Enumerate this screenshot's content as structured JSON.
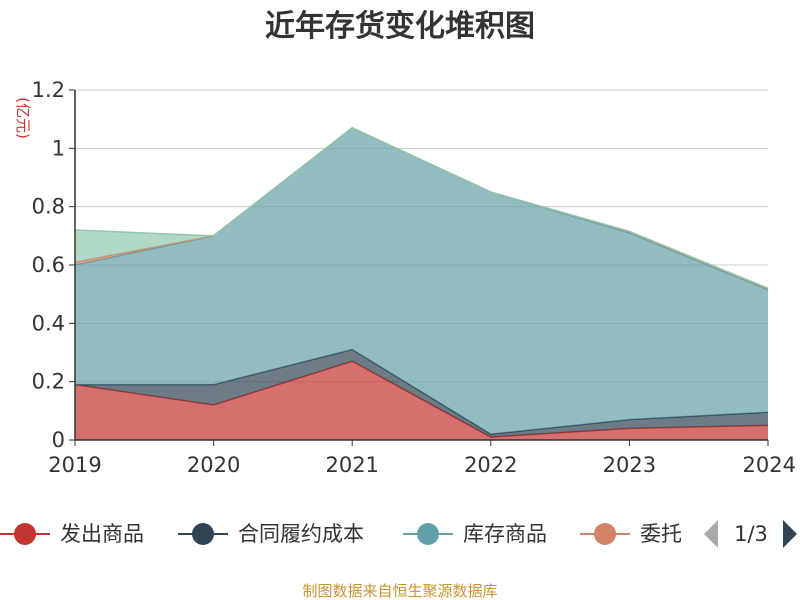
{
  "title": "近年存货变化堆积图",
  "footer": "制图数据来自恒生聚源数据库",
  "legend": {
    "items": [
      {
        "label": "发出商品",
        "color": "#c23531"
      },
      {
        "label": "合同履约成本",
        "color": "#2f4554"
      },
      {
        "label": "库存商品",
        "color": "#61a0a8"
      },
      {
        "label": "委托",
        "color": "#d48265"
      }
    ],
    "page": "1/3"
  },
  "chart_data": {
    "type": "area",
    "stacked": true,
    "unit": "(亿元)",
    "categories": [
      "2019",
      "2020",
      "2021",
      "2022",
      "2023",
      "2024"
    ],
    "yticks": [
      "0",
      "0.2",
      "0.4",
      "0.6",
      "0.8",
      "1",
      "1.2"
    ],
    "ylim": [
      0,
      1.2
    ],
    "grid": true,
    "legend_position": "bottom",
    "series": [
      {
        "name": "发出商品",
        "color": "#c23531",
        "values": [
          0.19,
          0.12,
          0.27,
          0.01,
          0.04,
          0.05
        ]
      },
      {
        "name": "合同履约成本",
        "color": "#2f4554",
        "values": [
          0.0,
          0.07,
          0.04,
          0.01,
          0.03,
          0.045
        ]
      },
      {
        "name": "库存商品",
        "color": "#61a0a8",
        "values": [
          0.41,
          0.51,
          0.76,
          0.83,
          0.64,
          0.42
        ]
      },
      {
        "name": "委托",
        "color": "#d48265",
        "values": [
          0.01,
          0.0,
          0.0,
          0.0,
          0.005,
          0.005
        ]
      },
      {
        "name": "",
        "color": "#91c7ae",
        "values": [
          0.11,
          0.0,
          0.0,
          0.0,
          0.0,
          0.0
        ]
      }
    ]
  }
}
